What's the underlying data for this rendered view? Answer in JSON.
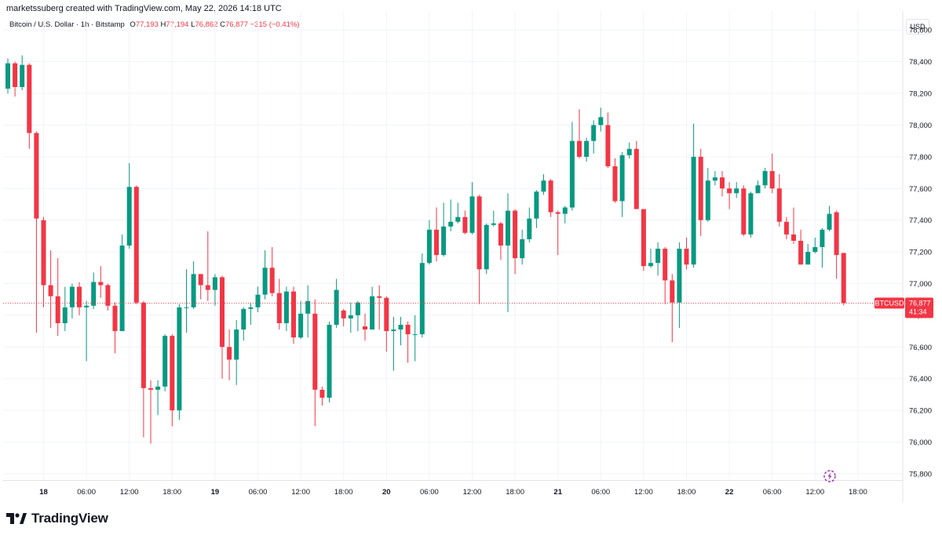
{
  "header": {
    "attribution": "marketssuberg created with TradingView.com, May 22, 2026 14:18 UTC"
  },
  "legend": {
    "symbol": "Bitcoin / U.S. Dollar · 1h · Bitstamp",
    "open": "77,193",
    "high": "77,194",
    "low": "76,862",
    "close": "76,877",
    "change": "−315 (−0.41%)",
    "o_prefix": "O",
    "h_prefix": "H",
    "l_prefix": "L",
    "c_prefix": "C"
  },
  "currency": "USD",
  "price_badge": {
    "symbol": "BTCUSD",
    "price": "76,877",
    "countdown": "41:34"
  },
  "footer": {
    "brand": "TradingView"
  },
  "colors": {
    "up": "#089981",
    "down": "#f23645",
    "grid": "#f0f3fa",
    "text": "#131722"
  },
  "icons": [
    "tradingview-logo-icon",
    "lightning-icon"
  ],
  "chart_data": {
    "type": "candlestick",
    "timeframe": "1h",
    "y_ticks": [
      75800,
      76000,
      76200,
      76400,
      76600,
      76800,
      77000,
      77200,
      77400,
      77600,
      77800,
      78000,
      78200,
      78400,
      78600
    ],
    "y_tick_labels": [
      "75,800",
      "76,000",
      "76,200",
      "76,400",
      "76,600",
      "76,800",
      "77,000",
      "77,200",
      "77,400",
      "77,600",
      "77,800",
      "78,000",
      "78,200",
      "78,400",
      "78,600"
    ],
    "ylim": [
      75760,
      78720
    ],
    "x_ticks": [
      {
        "index": 5,
        "label": "18"
      },
      {
        "index": 11,
        "label": "06:00"
      },
      {
        "index": 17,
        "label": "12:00"
      },
      {
        "index": 23,
        "label": "18:00"
      },
      {
        "index": 29,
        "label": "19"
      },
      {
        "index": 35,
        "label": "06:00"
      },
      {
        "index": 41,
        "label": "12:00"
      },
      {
        "index": 47,
        "label": "18:00"
      },
      {
        "index": 53,
        "label": "20"
      },
      {
        "index": 59,
        "label": "06:00"
      },
      {
        "index": 65,
        "label": "12:00"
      },
      {
        "index": 71,
        "label": "18:00"
      },
      {
        "index": 77,
        "label": "21"
      },
      {
        "index": 83,
        "label": "06:00"
      },
      {
        "index": 89,
        "label": "12:00"
      },
      {
        "index": 95,
        "label": "18:00"
      },
      {
        "index": 101,
        "label": "22"
      },
      {
        "index": 107,
        "label": "06:00"
      },
      {
        "index": 113,
        "label": "12:00"
      },
      {
        "index": 119,
        "label": "18:00"
      }
    ],
    "last_price": 76877,
    "candles": [
      [
        78230,
        78390,
        78420,
        78200
      ],
      [
        78390,
        78240,
        78400,
        78180
      ],
      [
        78240,
        78380,
        78440,
        78220
      ],
      [
        78380,
        77950,
        78390,
        77850
      ],
      [
        77950,
        77410,
        77960,
        76690
      ],
      [
        77400,
        76990,
        77420,
        76850
      ],
      [
        76990,
        76920,
        77210,
        76720
      ],
      [
        76920,
        76750,
        77160,
        76670
      ],
      [
        76750,
        76850,
        76980,
        76700
      ],
      [
        76850,
        76980,
        77000,
        76780
      ],
      [
        76980,
        76850,
        77010,
        76800
      ],
      [
        76850,
        76860,
        76890,
        76510
      ],
      [
        76860,
        77010,
        77070,
        76840
      ],
      [
        77010,
        76990,
        77110,
        76910
      ],
      [
        76990,
        76860,
        77000,
        76830
      ],
      [
        76860,
        76700,
        76880,
        76560
      ],
      [
        76700,
        77240,
        77310,
        76700
      ],
      [
        77240,
        77610,
        77760,
        77220
      ],
      [
        77610,
        76880,
        77620,
        76870
      ],
      [
        76880,
        76340,
        76890,
        76030
      ],
      [
        76340,
        76330,
        76390,
        75990
      ],
      [
        76330,
        76350,
        76390,
        76170
      ],
      [
        76350,
        76670,
        76680,
        76320
      ],
      [
        76670,
        76200,
        76680,
        76100
      ],
      [
        76200,
        76850,
        76870,
        76140
      ],
      [
        76850,
        76850,
        77090,
        76690
      ],
      [
        76850,
        77060,
        77140,
        76840
      ],
      [
        77060,
        76990,
        77020,
        76900
      ],
      [
        76990,
        76960,
        77330,
        76890
      ],
      [
        76960,
        77040,
        77060,
        76860
      ],
      [
        77040,
        76600,
        77050,
        76400
      ],
      [
        76600,
        76520,
        76710,
        76390
      ],
      [
        76520,
        76710,
        76770,
        76360
      ],
      [
        76710,
        76840,
        76850,
        76640
      ],
      [
        76840,
        76850,
        76880,
        76740
      ],
      [
        76850,
        76930,
        76980,
        76820
      ],
      [
        76930,
        77100,
        77210,
        76900
      ],
      [
        77100,
        76940,
        77230,
        76920
      ],
      [
        76940,
        76750,
        77030,
        76710
      ],
      [
        76750,
        76950,
        76980,
        76700
      ],
      [
        76950,
        76660,
        76980,
        76620
      ],
      [
        76660,
        76810,
        76890,
        76650
      ],
      [
        76810,
        76890,
        76990,
        76660
      ],
      [
        76810,
        76330,
        76900,
        76100
      ],
      [
        76330,
        76280,
        76350,
        76230
      ],
      [
        76280,
        76740,
        76760,
        76250
      ],
      [
        76740,
        76960,
        77030,
        76720
      ],
      [
        76830,
        76780,
        76840,
        76730
      ],
      [
        76780,
        76800,
        76880,
        76690
      ],
      [
        76800,
        76880,
        76890,
        76700
      ],
      [
        76730,
        76710,
        76810,
        76640
      ],
      [
        76710,
        76920,
        76980,
        76720
      ],
      [
        76920,
        76910,
        76990,
        76710
      ],
      [
        76910,
        76700,
        76920,
        76570
      ],
      [
        76700,
        76710,
        76790,
        76450
      ],
      [
        76710,
        76740,
        76790,
        76610
      ],
      [
        76740,
        76680,
        76760,
        76500
      ],
      [
        76680,
        76680,
        76800,
        76510
      ],
      [
        76680,
        77130,
        77190,
        76660
      ],
      [
        77130,
        77340,
        77400,
        77120
      ],
      [
        77340,
        77180,
        77480,
        77140
      ],
      [
        77180,
        77360,
        77510,
        77170
      ],
      [
        77360,
        77390,
        77530,
        77330
      ],
      [
        77390,
        77420,
        77510,
        77380
      ],
      [
        77420,
        77320,
        77460,
        77310
      ],
      [
        77320,
        77550,
        77640,
        77310
      ],
      [
        77550,
        77090,
        77560,
        76870
      ],
      [
        77090,
        77370,
        77380,
        77060
      ],
      [
        77370,
        77380,
        77460,
        77360
      ],
      [
        77380,
        77240,
        77390,
        77150
      ],
      [
        77240,
        77460,
        77570,
        76820
      ],
      [
        77460,
        77160,
        77470,
        77060
      ],
      [
        77160,
        77280,
        77340,
        77120
      ],
      [
        77280,
        77410,
        77480,
        77260
      ],
      [
        77410,
        77580,
        77590,
        77350
      ],
      [
        77580,
        77650,
        77690,
        77560
      ],
      [
        77650,
        77450,
        77660,
        77420
      ],
      [
        77450,
        77440,
        77460,
        77180
      ],
      [
        77440,
        77480,
        77490,
        77380
      ],
      [
        77480,
        77900,
        78020,
        77460
      ],
      [
        77900,
        77800,
        78100,
        77790
      ],
      [
        77800,
        77900,
        77920,
        77770
      ],
      [
        77900,
        78000,
        78030,
        77820
      ],
      [
        78000,
        78050,
        78110,
        77960
      ],
      [
        78000,
        77740,
        78080,
        77730
      ],
      [
        77740,
        77520,
        77790,
        77510
      ],
      [
        77520,
        77810,
        77830,
        77420
      ],
      [
        77810,
        77850,
        77890,
        77790
      ],
      [
        77850,
        77470,
        77900,
        77470
      ],
      [
        77470,
        77110,
        77470,
        77080
      ],
      [
        77110,
        77130,
        77220,
        77100
      ],
      [
        77130,
        77220,
        77260,
        77050
      ],
      [
        77220,
        77020,
        77230,
        76870
      ],
      [
        77020,
        76880,
        77060,
        76630
      ],
      [
        76880,
        77220,
        77260,
        76720
      ],
      [
        77220,
        77120,
        77290,
        77090
      ],
      [
        77120,
        77800,
        78010,
        77100
      ],
      [
        77800,
        77400,
        77850,
        77300
      ],
      [
        77400,
        77650,
        77730,
        77390
      ],
      [
        77650,
        77670,
        77710,
        77620
      ],
      [
        77670,
        77600,
        77710,
        77550
      ],
      [
        77600,
        77570,
        77640,
        77470
      ],
      [
        77570,
        77600,
        77640,
        77540
      ],
      [
        77600,
        77310,
        77620,
        77300
      ],
      [
        77310,
        77570,
        77580,
        77290
      ],
      [
        77570,
        77620,
        77650,
        77580
      ],
      [
        77620,
        77710,
        77730,
        77600
      ],
      [
        77710,
        77600,
        77820,
        77570
      ],
      [
        77600,
        77390,
        77690,
        77360
      ],
      [
        77390,
        77310,
        77420,
        77280
      ],
      [
        77310,
        77270,
        77480,
        77250
      ],
      [
        77270,
        77120,
        77340,
        77120
      ],
      [
        77120,
        77200,
        77250,
        77140
      ],
      [
        77200,
        77230,
        77290,
        77190
      ],
      [
        77230,
        77340,
        77350,
        77100
      ],
      [
        77340,
        77440,
        77490,
        77330
      ],
      [
        77450,
        77180,
        77460,
        77030
      ],
      [
        77193,
        76877,
        77194,
        76862
      ]
    ]
  }
}
